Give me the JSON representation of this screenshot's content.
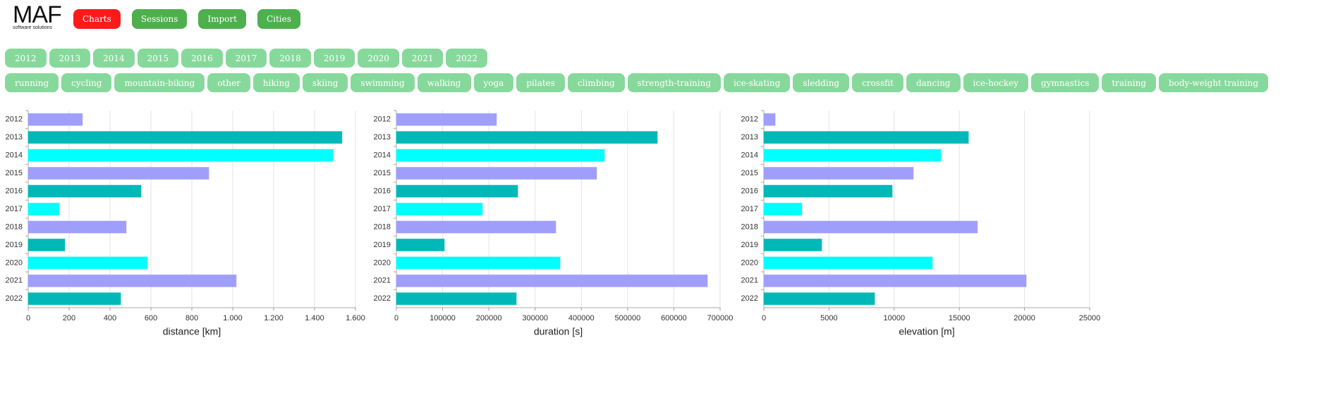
{
  "logo": {
    "title": "MAF",
    "subtitle": "software solutions"
  },
  "nav": [
    {
      "label": "Charts",
      "color": "#ff1a1a"
    },
    {
      "label": "Sessions",
      "color": "#4db04d"
    },
    {
      "label": "Import",
      "color": "#4db04d"
    },
    {
      "label": "Cities",
      "color": "#4db04d"
    }
  ],
  "years": [
    "2012",
    "2013",
    "2014",
    "2015",
    "2016",
    "2017",
    "2018",
    "2019",
    "2020",
    "2021",
    "2022"
  ],
  "activities": [
    "running",
    "cycling",
    "mountain-biking",
    "other",
    "hiking",
    "skiing",
    "swimming",
    "walking",
    "yoga",
    "pilates",
    "climbing",
    "strength-training",
    "ice-skating",
    "sledding",
    "crossfit",
    "dancing",
    "ice-hockey",
    "gymnastics",
    "training",
    "body-weight training"
  ],
  "chart_data": [
    {
      "type": "bar",
      "orientation": "horizontal",
      "xlabel": "distance [km]",
      "categories": [
        "2012",
        "2013",
        "2014",
        "2015",
        "2016",
        "2017",
        "2018",
        "2019",
        "2020",
        "2021",
        "2022"
      ],
      "values": [
        265,
        1534,
        1490,
        883,
        552,
        152,
        479,
        179,
        583,
        1017,
        452
      ],
      "colors": [
        "#9f9ffb",
        "#00b8b8",
        "#00ffff"
      ],
      "xlim": [
        0,
        1600
      ],
      "xticks": [
        0,
        200,
        400,
        600,
        800,
        {
          "value": 1000,
          "label": "1.000"
        },
        {
          "value": 1200,
          "label": "1.200"
        },
        {
          "value": 1400,
          "label": "1.400"
        },
        {
          "value": 1600,
          "label": "1.600"
        }
      ],
      "grid": true
    },
    {
      "type": "bar",
      "orientation": "horizontal",
      "xlabel": "duration [s]",
      "categories": [
        "2012",
        "2013",
        "2014",
        "2015",
        "2016",
        "2017",
        "2018",
        "2019",
        "2020",
        "2021",
        "2022"
      ],
      "values": [
        216500,
        564300,
        449900,
        433100,
        262300,
        186000,
        344700,
        103700,
        353800,
        672500,
        259300
      ],
      "colors": [
        "#9f9ffb",
        "#00b8b8",
        "#00ffff"
      ],
      "xlim": [
        0,
        700000
      ],
      "xticks": [
        0,
        100000,
        200000,
        300000,
        400000,
        500000,
        600000,
        700000
      ],
      "grid": true
    },
    {
      "type": "bar",
      "orientation": "horizontal",
      "xlabel": "elevation [m]",
      "categories": [
        "2012",
        "2013",
        "2014",
        "2015",
        "2016",
        "2017",
        "2018",
        "2019",
        "2020",
        "2021",
        "2022"
      ],
      "values": [
        870,
        15700,
        13580,
        11470,
        9850,
        2920,
        16390,
        4440,
        12930,
        20130,
        8500
      ],
      "colors": [
        "#9f9ffb",
        "#00b8b8",
        "#00ffff"
      ],
      "xlim": [
        0,
        25000
      ],
      "xticks": [
        0,
        5000,
        10000,
        15000,
        20000,
        25000
      ],
      "grid": true
    }
  ]
}
